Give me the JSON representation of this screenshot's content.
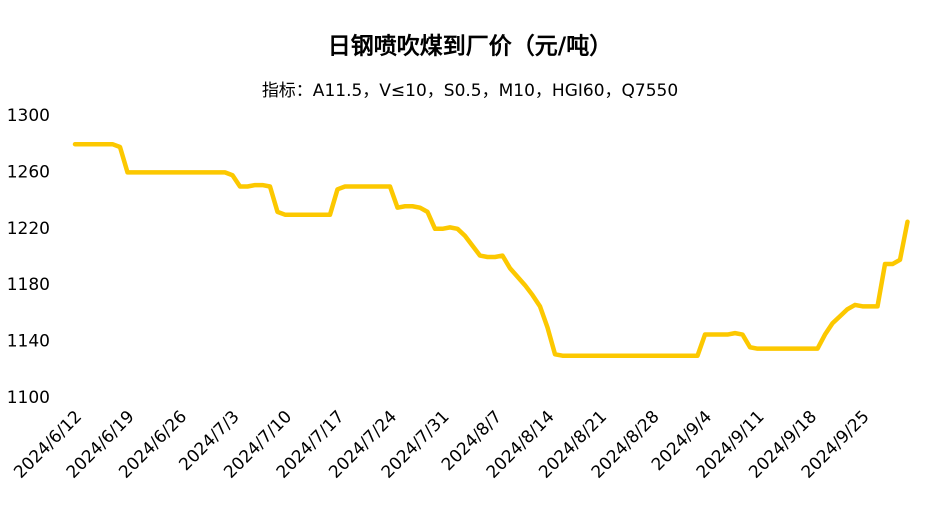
{
  "chart_data": {
    "type": "line",
    "title": "日钢喷吹煤到厂价（元/吨）",
    "subtitle": "指标：A11.5，V≤10，S0.5，M10，HGI60，Q7550",
    "categories": [
      "2024/6/12",
      null,
      null,
      null,
      null,
      null,
      null,
      "2024/6/19",
      null,
      null,
      null,
      null,
      null,
      null,
      "2024/6/26",
      null,
      null,
      null,
      null,
      null,
      null,
      "2024/7/3",
      null,
      null,
      null,
      null,
      null,
      null,
      "2024/7/10",
      null,
      null,
      null,
      null,
      null,
      null,
      "2024/7/17",
      null,
      null,
      null,
      null,
      null,
      null,
      "2024/7/24",
      null,
      null,
      null,
      null,
      null,
      null,
      "2024/7/31",
      null,
      null,
      null,
      null,
      null,
      null,
      "2024/8/7",
      null,
      null,
      null,
      null,
      null,
      null,
      "2024/8/14",
      null,
      null,
      null,
      null,
      null,
      null,
      "2024/8/21",
      null,
      null,
      null,
      null,
      null,
      null,
      "2024/8/28",
      null,
      null,
      null,
      null,
      null,
      null,
      "2024/9/4",
      null,
      null,
      null,
      null,
      null,
      null,
      "2024/9/11",
      null,
      null,
      null,
      null,
      null,
      null,
      "2024/9/18",
      null,
      null,
      null,
      null,
      null,
      null,
      "2024/9/25",
      null,
      null,
      null,
      null,
      null,
      null
    ],
    "values": [
      1280,
      1280,
      1280,
      1280,
      1280,
      1280,
      1278,
      1260,
      1260,
      1260,
      1260,
      1260,
      1260,
      1260,
      1260,
      1260,
      1260,
      1260,
      1260,
      1260,
      1260,
      1258,
      1250,
      1250,
      1251,
      1251,
      1250,
      1232,
      1230,
      1230,
      1230,
      1230,
      1230,
      1230,
      1230,
      1248,
      1250,
      1250,
      1250,
      1250,
      1250,
      1250,
      1250,
      1235,
      1236,
      1236,
      1235,
      1232,
      1220,
      1220,
      1221,
      1220,
      1215,
      1208,
      1201,
      1200,
      1200,
      1201,
      1192,
      1186,
      1180,
      1173,
      1165,
      1150,
      1131,
      1130,
      1130,
      1130,
      1130,
      1130,
      1130,
      1130,
      1130,
      1130,
      1130,
      1130,
      1130,
      1130,
      1130,
      1130,
      1130,
      1130,
      1130,
      1130,
      1145,
      1145,
      1145,
      1145,
      1146,
      1145,
      1136,
      1135,
      1135,
      1135,
      1135,
      1135,
      1135,
      1135,
      1135,
      1135,
      1145,
      1153,
      1158,
      1163,
      1166,
      1165,
      1165,
      1165,
      1195,
      1195,
      1198,
      1225
    ],
    "color": "#fcc800",
    "ylim": [
      1100,
      1300
    ],
    "yticks": [
      1100,
      1140,
      1180,
      1220,
      1260,
      1300
    ],
    "grid": false
  }
}
